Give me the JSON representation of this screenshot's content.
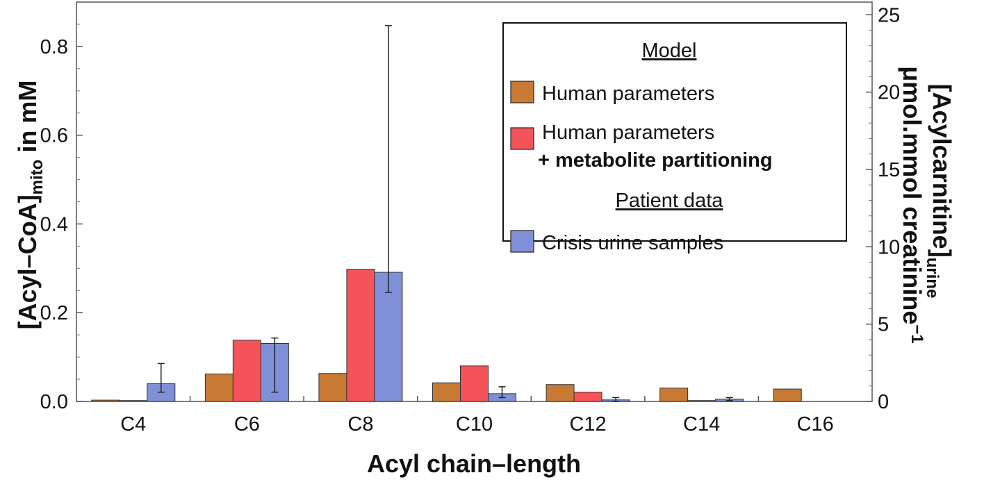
{
  "chart_data": {
    "type": "bar",
    "categories": [
      "C4",
      "C6",
      "C8",
      "C10",
      "C12",
      "C14",
      "C16"
    ],
    "series": [
      {
        "name": "Human parameters",
        "color": "#c87a35",
        "axis": "left",
        "values": [
          0.003,
          0.062,
          0.063,
          0.042,
          0.038,
          0.03,
          0.028
        ]
      },
      {
        "name": "Human parameters + metabolite partitioning",
        "color": "#f5535a",
        "axis": "left",
        "values": [
          0.002,
          0.138,
          0.298,
          0.08,
          0.021,
          0.002,
          0.0
        ]
      },
      {
        "name": "Crisis urine samples",
        "color": "#8090d8",
        "axis": "right",
        "values": [
          1.15,
          3.75,
          8.35,
          0.5,
          0.1,
          0.15,
          0.0
        ],
        "err_low": [
          0.6,
          0.6,
          7.05,
          0.25,
          0.0,
          0.05,
          0.0
        ],
        "err_high": [
          2.45,
          4.1,
          24.3,
          0.95,
          0.25,
          0.25,
          0.0
        ]
      }
    ],
    "xlabel": "Acyl chain–length",
    "ylabel_left": {
      "main": "[Acyl–CoA]",
      "sub": "mito",
      "unit": " in mM"
    },
    "ylabel_right": {
      "line1_main": "[Acylcarnitine]",
      "line1_sub": "urine",
      "line2_main": "μmol.mmol creatinine",
      "line2_sup": "−1"
    },
    "ylim_left": [
      0,
      0.9
    ],
    "ylim_right": [
      0,
      25.82
    ],
    "yticks_left": [
      "0.0",
      "0.2",
      "0.4",
      "0.6",
      "0.8"
    ],
    "yticks_left_values": [
      0,
      0.2,
      0.4,
      0.6,
      0.8
    ],
    "yticks_right": [
      "0",
      "5",
      "10",
      "15",
      "20",
      "25"
    ],
    "yticks_right_values": [
      0,
      5,
      10,
      15,
      20,
      25
    ],
    "grid": false,
    "legend": {
      "placement": "top-right",
      "heading_model": "Model",
      "heading_patient": "Patient data",
      "item1": "Human parameters",
      "item2_line1": "Human parameters",
      "item2_line2": "+ metabolite partitioning",
      "item3": "Crisis urine samples"
    }
  }
}
